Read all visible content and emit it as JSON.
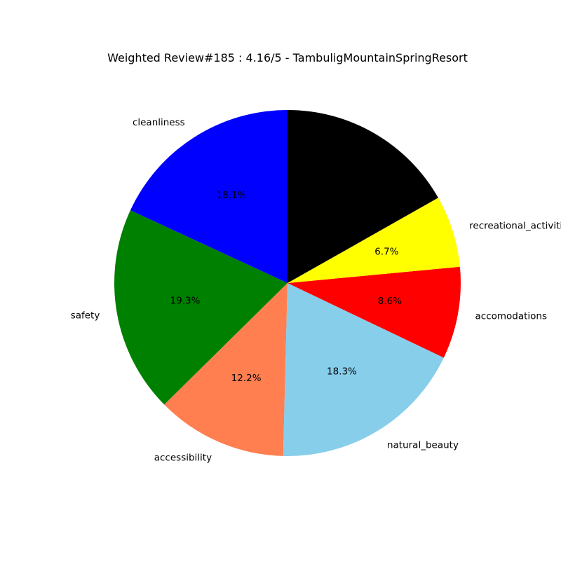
{
  "chart_data": {
    "type": "pie",
    "title": "Weighted Review#185 : 4.16/5 - TambuligMountainSpringResort",
    "slices": [
      {
        "label": "cleanliness",
        "percent": 18.1,
        "percent_label": "18.1%",
        "color": "#0000ff"
      },
      {
        "label": "safety",
        "percent": 19.3,
        "percent_label": "19.3%",
        "color": "#008000"
      },
      {
        "label": "accessibility",
        "percent": 12.2,
        "percent_label": "12.2%",
        "color": "#ff7f50"
      },
      {
        "label": "natural_beauty",
        "percent": 18.3,
        "percent_label": "18.3%",
        "color": "#87ceeb"
      },
      {
        "label": "accomodations",
        "percent": 8.6,
        "percent_label": "8.6%",
        "color": "#ff0000"
      },
      {
        "label": "recreational_activities",
        "percent": 6.7,
        "percent_label": "6.7%",
        "color": "#ffff00"
      },
      {
        "label": "",
        "percent": 16.8,
        "percent_label": "",
        "color": "#000000"
      }
    ],
    "start_angle_deg": 90,
    "direction": "counterclockwise",
    "legend": "none"
  }
}
